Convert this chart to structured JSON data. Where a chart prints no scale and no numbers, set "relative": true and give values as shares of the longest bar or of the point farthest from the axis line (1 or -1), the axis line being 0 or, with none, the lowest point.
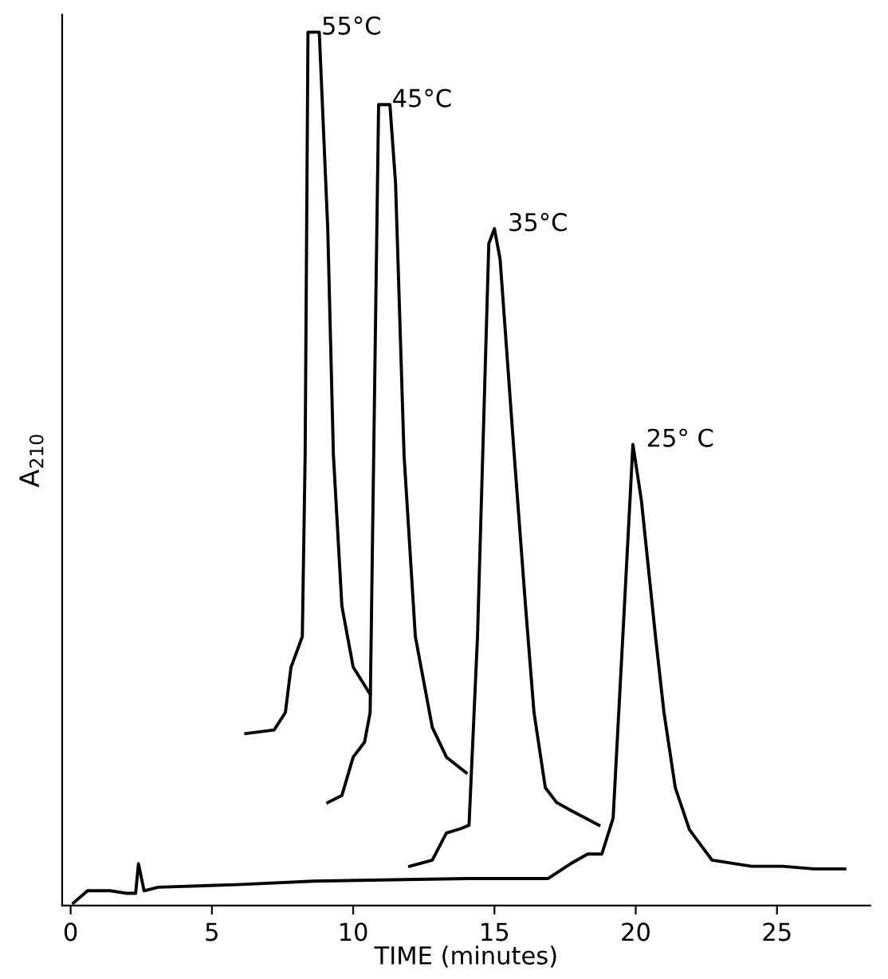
{
  "chart_data": {
    "type": "line",
    "relative": true,
    "xlabel": "TIME (minutes)",
    "ylabel": "A$_{210}$",
    "xlim": [
      -0.3,
      28.3
    ],
    "xticks": [
      0,
      5,
      10,
      15,
      20,
      25
    ],
    "grid": false,
    "legend": false,
    "marker": "none",
    "line_style": "solid",
    "series": [
      {
        "name": "55°C",
        "color": "#000000",
        "x": [
          6.2,
          7.2,
          7.6,
          7.8,
          8.2,
          8.3,
          8.4,
          8.8,
          9.1,
          9.3,
          9.6,
          10.0,
          10.6
        ],
        "values": [
          0.197,
          0.201,
          0.221,
          0.273,
          0.308,
          0.516,
          1,
          1,
          0.775,
          0.516,
          0.343,
          0.273,
          0.242
        ]
      },
      {
        "name": "45°C",
        "color": "#000000",
        "x": [
          9.1,
          9.6,
          10.0,
          10.4,
          10.6,
          10.8,
          10.9,
          11.3,
          11.5,
          11.8,
          12.2,
          12.8,
          13.3,
          14.0
        ],
        "values": [
          0.118,
          0.126,
          0.17,
          0.187,
          0.221,
          0.689,
          0.917,
          0.917,
          0.827,
          0.516,
          0.308,
          0.204,
          0.17,
          0.152
        ]
      },
      {
        "name": "35°C",
        "color": "#000000",
        "x": [
          12.0,
          12.8,
          13.3,
          13.8,
          14.1,
          14.4,
          14.8,
          15.0,
          15.2,
          15.7,
          16.1,
          16.4,
          16.8,
          17.2,
          17.7,
          18.7
        ],
        "values": [
          0.045,
          0.052,
          0.083,
          0.088,
          0.092,
          0.308,
          0.758,
          0.775,
          0.74,
          0.516,
          0.343,
          0.221,
          0.135,
          0.118,
          0.109,
          0.092
        ]
      },
      {
        "name": "25° C",
        "color": "#000000",
        "x": [
          0.1,
          0.6,
          1.4,
          2.0,
          2.3,
          2.4,
          2.6,
          3.1,
          5.9,
          8.6,
          14.1,
          16.9,
          17.7,
          18.3,
          18.8,
          19.2,
          19.6,
          19.9,
          20.2,
          20.7,
          21.0,
          21.4,
          21.9,
          22.7,
          24.1,
          25.2,
          26.3,
          27.4
        ],
        "values": [
          0.003,
          0.017,
          0.017,
          0.014,
          0.014,
          0.048,
          0.017,
          0.021,
          0.024,
          0.028,
          0.031,
          0.031,
          0.048,
          0.059,
          0.059,
          0.1,
          0.343,
          0.528,
          0.464,
          0.308,
          0.221,
          0.135,
          0.087,
          0.052,
          0.045,
          0.045,
          0.042,
          0.042
        ]
      }
    ]
  }
}
